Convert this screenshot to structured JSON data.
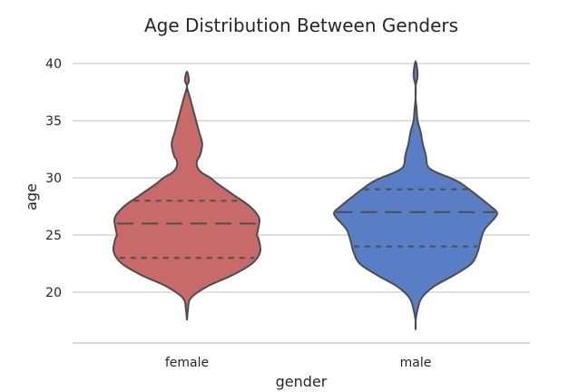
{
  "chart_data": {
    "type": "violin",
    "title": "Age Distribution Between Genders",
    "xlabel": "gender",
    "ylabel": "age",
    "categories": [
      "female",
      "male"
    ],
    "ylim": [
      15.5,
      42
    ],
    "yticks": [
      20,
      25,
      30,
      35,
      40
    ],
    "grid": true,
    "violins": [
      {
        "category": "female",
        "color": "#c96a6a",
        "quartiles": [
          23,
          26,
          28
        ],
        "profile": [
          [
            17.6,
            0.0
          ],
          [
            18.5,
            0.01
          ],
          [
            19.5,
            0.04
          ],
          [
            20.5,
            0.2
          ],
          [
            21.5,
            0.45
          ],
          [
            22.5,
            0.64
          ],
          [
            23.5,
            0.72
          ],
          [
            24.5,
            0.71
          ],
          [
            25.0,
            0.69
          ],
          [
            25.5,
            0.7
          ],
          [
            26.5,
            0.71
          ],
          [
            27.5,
            0.62
          ],
          [
            28.5,
            0.46
          ],
          [
            29.5,
            0.3
          ],
          [
            30.0,
            0.23
          ],
          [
            30.5,
            0.14
          ],
          [
            31.0,
            0.1
          ],
          [
            31.5,
            0.1
          ],
          [
            32.0,
            0.13
          ],
          [
            33.0,
            0.15
          ],
          [
            34.0,
            0.12
          ],
          [
            35.0,
            0.09
          ],
          [
            36.0,
            0.06
          ],
          [
            37.0,
            0.03
          ],
          [
            38.0,
            0.0
          ],
          [
            38.5,
            0.02
          ],
          [
            39.3,
            0.0
          ]
        ]
      },
      {
        "category": "male",
        "color": "#5a7ec6",
        "quartiles": [
          24,
          27,
          29
        ],
        "profile": [
          [
            16.7,
            0.0
          ],
          [
            17.5,
            0.0
          ],
          [
            18.5,
            0.02
          ],
          [
            19.5,
            0.06
          ],
          [
            20.5,
            0.18
          ],
          [
            21.5,
            0.38
          ],
          [
            22.5,
            0.55
          ],
          [
            23.5,
            0.61
          ],
          [
            24.5,
            0.64
          ],
          [
            25.5,
            0.68
          ],
          [
            26.5,
            0.78
          ],
          [
            27.0,
            0.8
          ],
          [
            27.5,
            0.74
          ],
          [
            28.5,
            0.6
          ],
          [
            29.5,
            0.45
          ],
          [
            30.0,
            0.34
          ],
          [
            30.5,
            0.2
          ],
          [
            31.0,
            0.12
          ],
          [
            32.0,
            0.1
          ],
          [
            33.0,
            0.07
          ],
          [
            34.0,
            0.05
          ],
          [
            35.0,
            0.02
          ],
          [
            36.0,
            0.01
          ],
          [
            37.0,
            0.0
          ],
          [
            38.0,
            0.0
          ],
          [
            39.0,
            0.02
          ],
          [
            40.2,
            0.0
          ]
        ]
      }
    ]
  }
}
